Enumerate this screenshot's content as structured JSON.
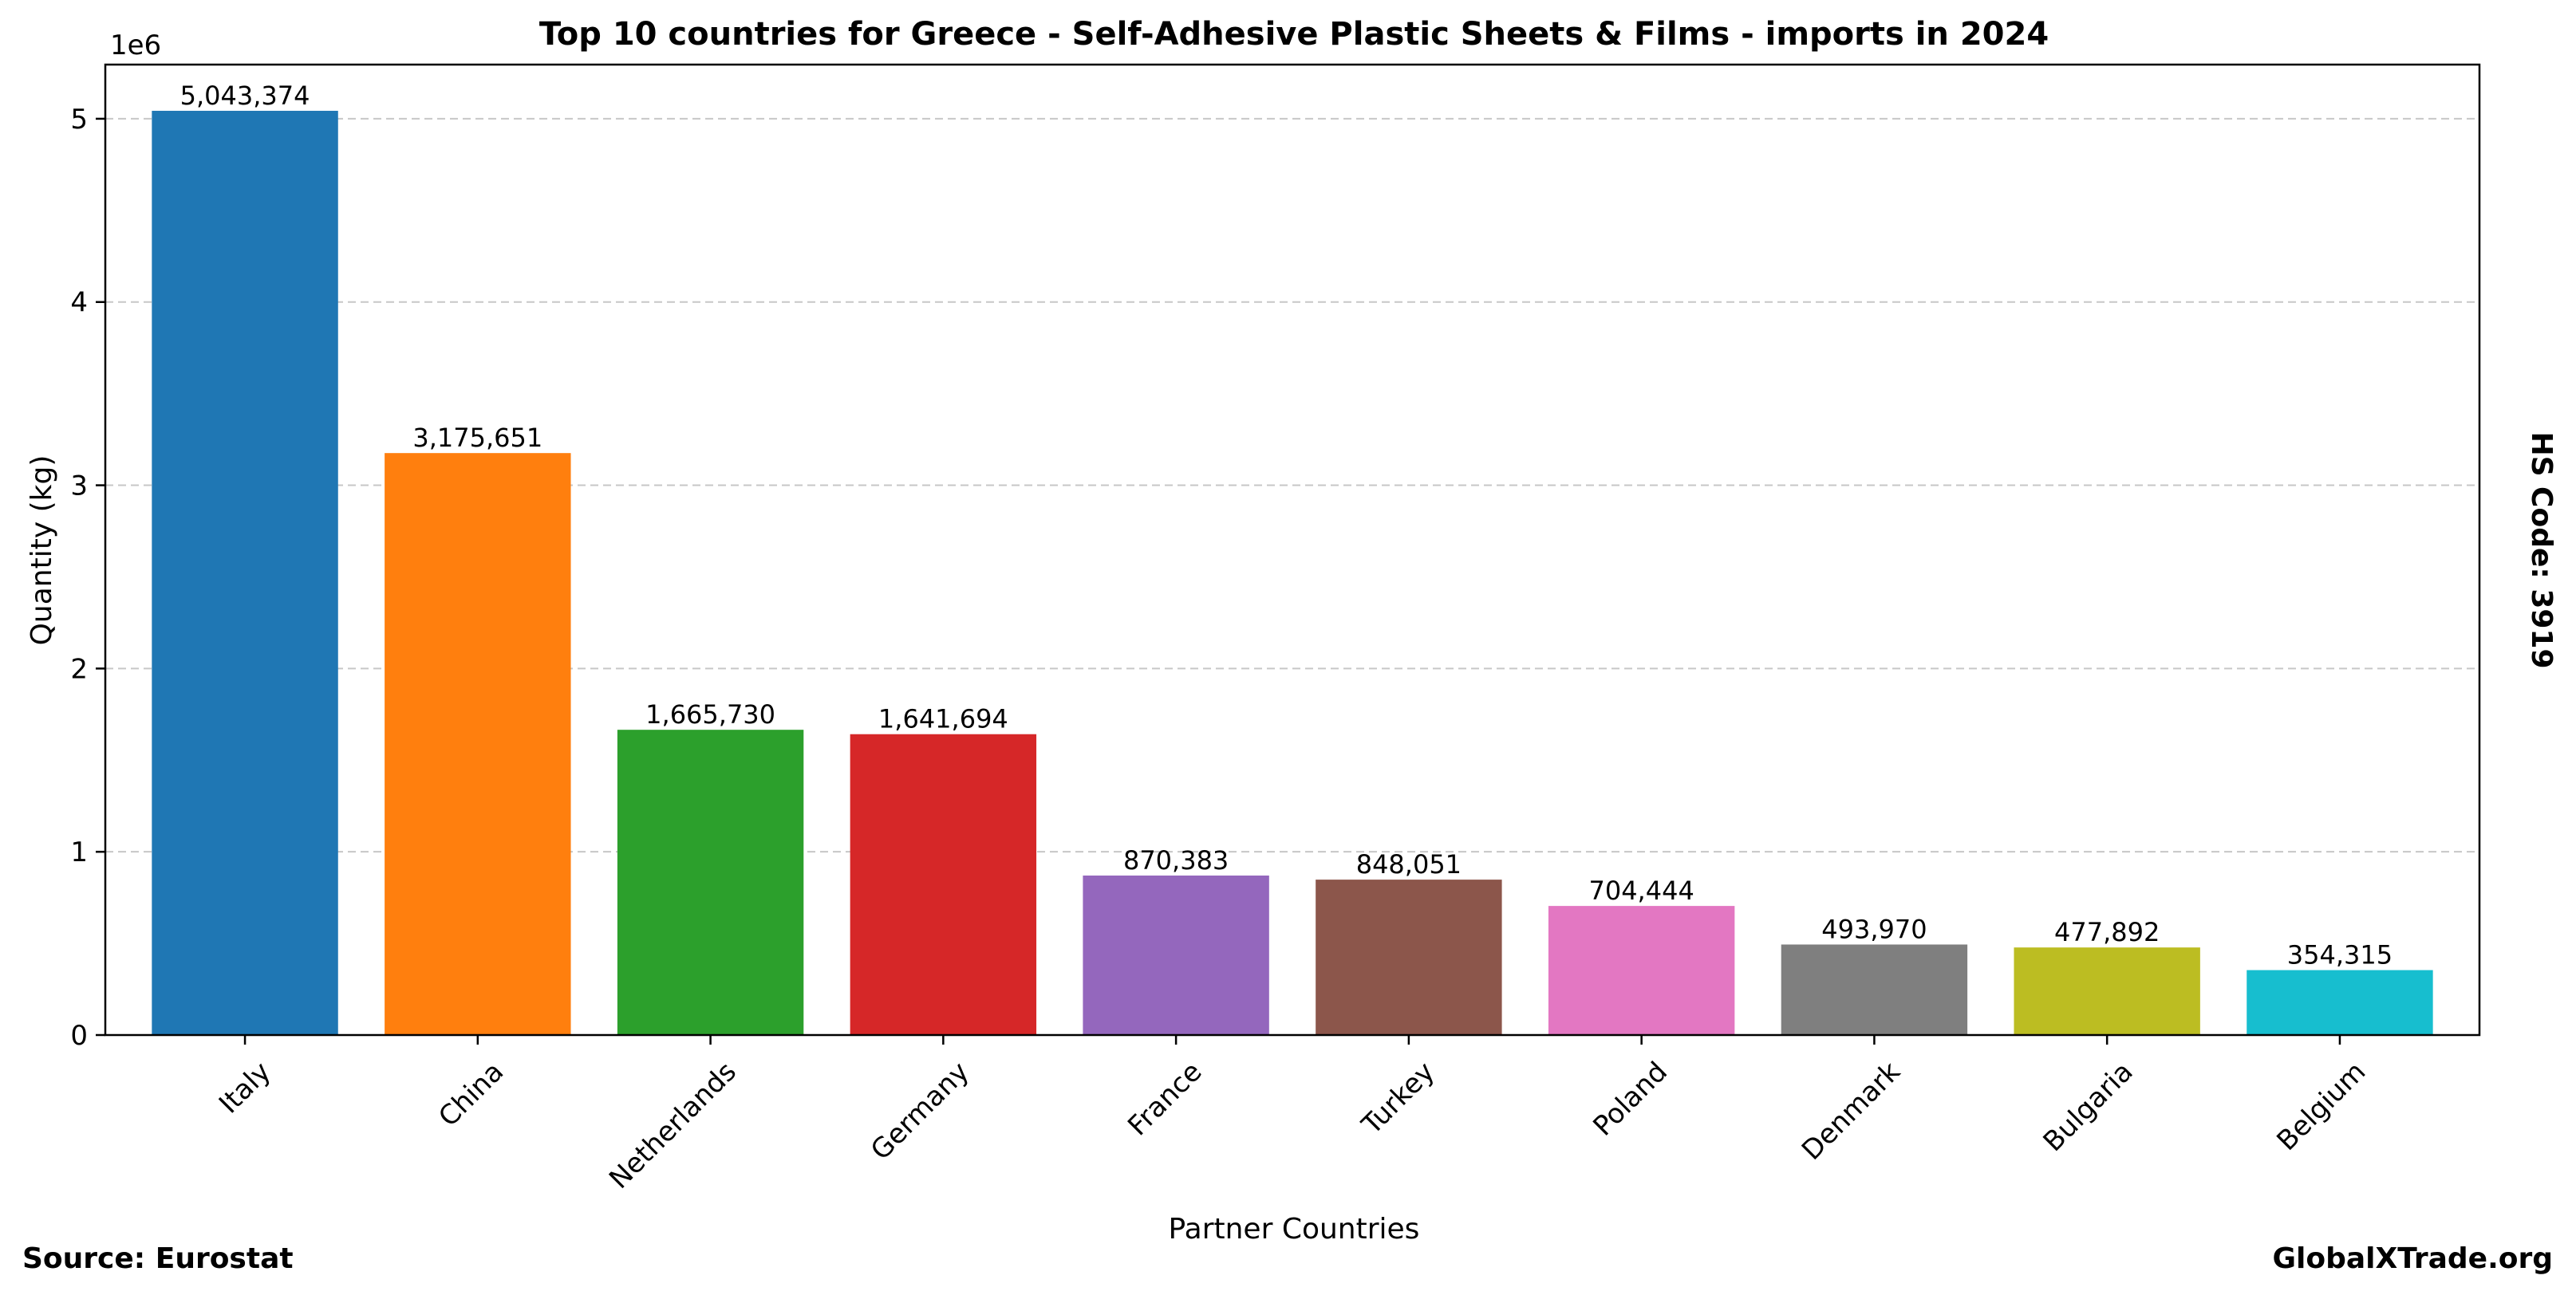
{
  "chart_data": {
    "type": "bar",
    "title": "Top 10 countries for Greece - Self-Adhesive Plastic Sheets & Films - imports in 2024",
    "xlabel": "Partner Countries",
    "ylabel": "Quantity (kg)",
    "y_multiplier_label": "1e6",
    "categories": [
      "Italy",
      "China",
      "Netherlands",
      "Germany",
      "France",
      "Turkey",
      "Poland",
      "Denmark",
      "Bulgaria",
      "Belgium"
    ],
    "values": [
      5043374,
      3175651,
      1665730,
      1641694,
      870383,
      848051,
      704444,
      493970,
      477892,
      354315
    ],
    "value_labels": [
      "5,043,374",
      "3,175,651",
      "1,665,730",
      "1,641,694",
      "870,383",
      "848,051",
      "704,444",
      "493,970",
      "477,892",
      "354,315"
    ],
    "colors": [
      "#1f77b4",
      "#ff7f0e",
      "#2ca02c",
      "#d62728",
      "#9467bd",
      "#8c564b",
      "#e377c2",
      "#7f7f7f",
      "#bcbd22",
      "#17becf"
    ],
    "yticks": [
      0,
      1,
      2,
      3,
      4,
      5
    ],
    "ylim": [
      0,
      5295543
    ],
    "grid": "y-dashed"
  },
  "side_label": "HS Code: 3919",
  "footer": {
    "source": "Source: Eurostat",
    "brand": "GlobalXTrade.org"
  }
}
